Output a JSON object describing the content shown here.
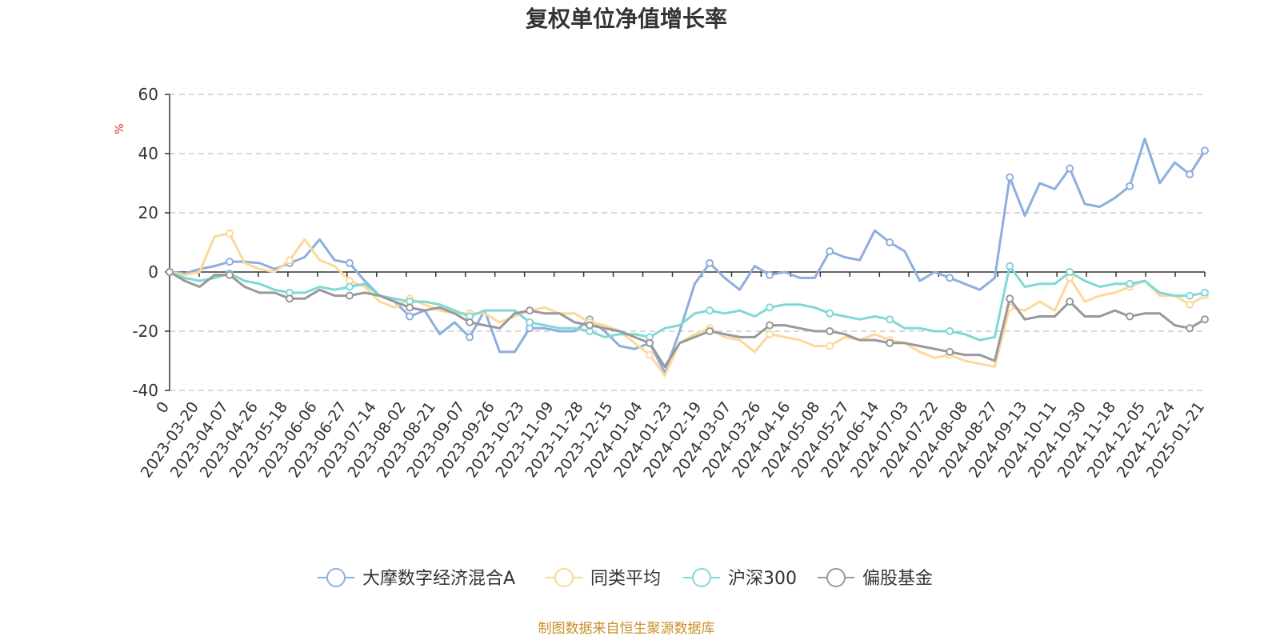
{
  "chart_data": {
    "type": "line",
    "title": "复权单位净值增长率",
    "ylabel": "%",
    "ylim": [
      -40,
      60
    ],
    "yticks": [
      -40,
      -20,
      0,
      20,
      40,
      60
    ],
    "x_tick_labels": [
      "0",
      "2023-03-20",
      "2023-04-07",
      "2023-04-26",
      "2023-05-18",
      "2023-06-06",
      "2023-06-27",
      "2023-07-14",
      "2023-08-02",
      "2023-08-21",
      "2023-09-07",
      "2023-09-26",
      "2023-10-23",
      "2023-11-09",
      "2023-11-28",
      "2023-12-15",
      "2024-01-04",
      "2024-01-23",
      "2024-02-19",
      "2024-03-07",
      "2024-03-26",
      "2024-04-16",
      "2024-05-08",
      "2024-05-27",
      "2024-06-14",
      "2024-07-03",
      "2024-07-22",
      "2024-08-08",
      "2024-08-27",
      "2024-09-13",
      "2024-10-11",
      "2024-10-30",
      "2024-11-18",
      "2024-12-05",
      "2024-12-24",
      "2025-01-21"
    ],
    "grid": "horizontal-dashed",
    "legend_position": "bottom",
    "series": [
      {
        "name": "大摩数字经济混合A",
        "color": "#8eaedd",
        "values": [
          0,
          -0.5,
          1,
          2,
          3.5,
          3.5,
          3,
          1,
          3,
          5,
          11,
          4,
          3,
          -3,
          -8,
          -10,
          -15,
          -13,
          -21,
          -17,
          -22,
          -13,
          -27,
          -27,
          -19,
          -19,
          -20,
          -20,
          -16,
          -20,
          -25,
          -26,
          -24,
          -34,
          -20,
          -4,
          3,
          -2,
          -6,
          2,
          -1,
          0,
          -2,
          -2,
          7,
          5,
          4,
          14,
          10,
          7,
          -3,
          0,
          -2,
          -4,
          -6,
          -2,
          32,
          19,
          30,
          28,
          35,
          23,
          22,
          25,
          29,
          45,
          30,
          37,
          33,
          41
        ]
      },
      {
        "name": "同类平均",
        "color": "#fdd89b",
        "values": [
          0,
          -1,
          0,
          12,
          13,
          3,
          1,
          0,
          4,
          11,
          4,
          2,
          -3,
          -5,
          -10,
          -12,
          -9,
          -11,
          -13,
          -14,
          -14,
          -14,
          -17,
          -15,
          -13,
          -12,
          -14,
          -14,
          -17,
          -18,
          -20,
          -24,
          -28,
          -35,
          -24,
          -21,
          -19,
          -22,
          -23,
          -27,
          -21,
          -22,
          -23,
          -25,
          -25,
          -22,
          -23,
          -21,
          -23,
          -24,
          -27,
          -29,
          -28,
          -30,
          -31,
          -32,
          -12,
          -13,
          -10,
          -13,
          -2,
          -10,
          -8,
          -7,
          -5,
          -3,
          -8,
          -8,
          -11,
          -8
        ]
      },
      {
        "name": "沪深300",
        "color": "#7fd8d6",
        "values": [
          0,
          -2,
          -3,
          -2,
          -0.5,
          -3,
          -4,
          -6,
          -7,
          -7,
          -5,
          -6,
          -5,
          -4,
          -8,
          -9,
          -10,
          -10,
          -11,
          -13,
          -15,
          -13,
          -13,
          -13,
          -17,
          -18,
          -19,
          -19,
          -20,
          -22,
          -21,
          -21,
          -22,
          -19,
          -18,
          -14,
          -13,
          -14,
          -13,
          -15,
          -12,
          -11,
          -11,
          -12,
          -14,
          -15,
          -16,
          -15,
          -16,
          -19,
          -19,
          -20,
          -20,
          -21,
          -23,
          -22,
          2,
          -5,
          -4,
          -4,
          0,
          -3,
          -5,
          -4,
          -4,
          -3,
          -7,
          -8,
          -8,
          -7
        ]
      },
      {
        "name": "偏股基金",
        "color": "#999999",
        "values": [
          0,
          -3,
          -5,
          -1,
          -1,
          -5,
          -7,
          -7,
          -9,
          -9,
          -6,
          -8,
          -8,
          -7,
          -8,
          -10,
          -12,
          -13,
          -12,
          -14,
          -17,
          -18,
          -19,
          -14,
          -13,
          -14,
          -14,
          -17,
          -18,
          -19,
          -20,
          -22,
          -24,
          -32,
          -24,
          -22,
          -20,
          -21,
          -22,
          -22,
          -18,
          -18,
          -19,
          -20,
          -20,
          -21,
          -23,
          -23,
          -24,
          -24,
          -25,
          -26,
          -27,
          -28,
          -28,
          -30,
          -9,
          -16,
          -15,
          -15,
          -10,
          -15,
          -15,
          -13,
          -15,
          -14,
          -14,
          -18,
          -19,
          -16
        ]
      }
    ]
  },
  "source_note": "制图数据来自恒生聚源数据库"
}
